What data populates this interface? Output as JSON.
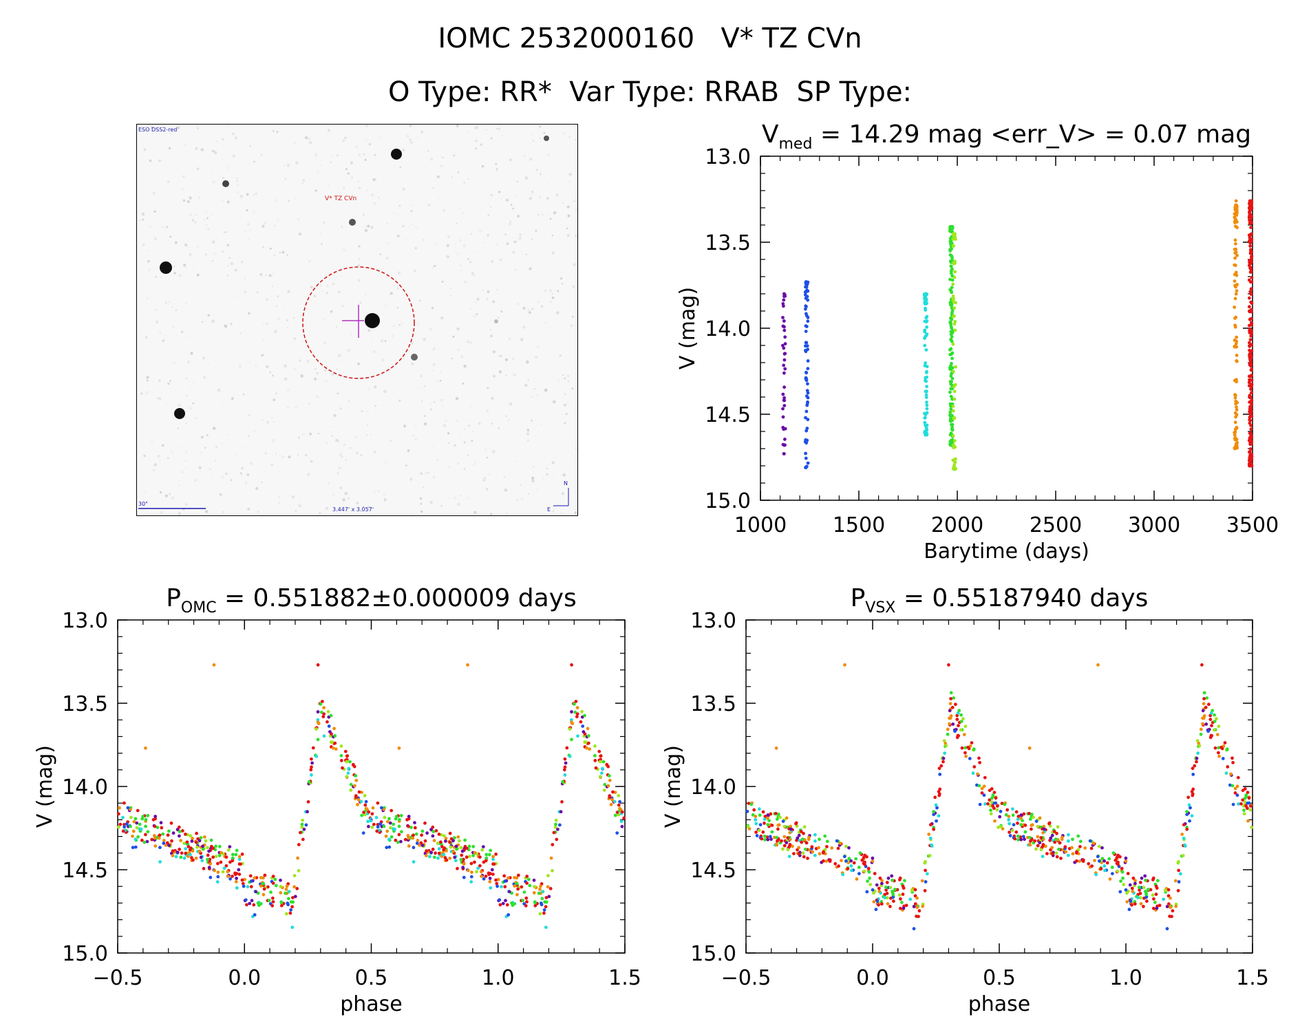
{
  "header": {
    "title": "IOMC 2532000160   V* TZ CVn",
    "subtitle": "O Type: RR*  Var Type: RRAB  SP Type:"
  },
  "finder_chart": {
    "survey": "ESO DSS2-red",
    "target_label": "V* TZ CVn",
    "scale_label": "30\"",
    "fov_label": "3.447' x 3.057'",
    "north_label": "N",
    "east_label": "E",
    "target_color": "#cc1111",
    "marker_color": "#b030c0",
    "annotation_color": "#1a1ab0"
  },
  "colors": {
    "purple": "#6a0aa8",
    "blue": "#1e50e6",
    "cyan": "#22dcdc",
    "green": "#2ee02e",
    "yellowgreen": "#a0e61e",
    "orange": "#f08c0a",
    "red": "#e61414"
  },
  "chart_data": [
    {
      "id": "lightcurve",
      "type": "scatter",
      "title_main": "V",
      "title_sub": "med",
      "title_rest": " = 14.29 mag <err_V> = 0.07 mag",
      "xlabel": "Barytime (days)",
      "ylabel": "V (mag)",
      "xlim": [
        1000,
        3500
      ],
      "ylim": [
        15.0,
        13.0
      ],
      "xticks": [
        1000,
        1500,
        2000,
        2500,
        3000,
        3500
      ],
      "xtick_labels": [
        "1000",
        "1500",
        "2000",
        "2500",
        "3000",
        "3500"
      ],
      "yticks": [
        13.0,
        13.5,
        14.0,
        14.5,
        15.0
      ],
      "ytick_labels": [
        "13.0",
        "13.5",
        "14.0",
        "14.5",
        "15.0"
      ],
      "groups": [
        {
          "name": "purple",
          "x": 1120,
          "ymin": 13.8,
          "ymax": 14.73,
          "n": 40,
          "seed": 11
        },
        {
          "name": "blue",
          "x": 1235,
          "ymin": 13.73,
          "ymax": 14.81,
          "n": 70,
          "seed": 12
        },
        {
          "name": "cyan",
          "x": 1840,
          "ymin": 13.8,
          "ymax": 14.62,
          "n": 80,
          "seed": 13
        },
        {
          "name": "green",
          "x": 1970,
          "ymin": 13.41,
          "ymax": 14.68,
          "n": 160,
          "seed": 14
        },
        {
          "name": "yellowgreen",
          "x": 1985,
          "ymin": 13.45,
          "ymax": 14.82,
          "n": 60,
          "seed": 15
        },
        {
          "name": "orange",
          "x": 3415,
          "ymin": 13.26,
          "ymax": 14.7,
          "n": 100,
          "seed": 16
        },
        {
          "name": "red",
          "x": 3490,
          "ymin": 13.26,
          "ymax": 14.8,
          "n": 240,
          "seed": 17
        }
      ]
    },
    {
      "id": "phase_omc",
      "type": "scatter",
      "title_main": "P",
      "title_sub": "OMC",
      "title_rest": " = 0.551882±0.000009 days",
      "xlabel": "phase",
      "ylabel": "V (mag)",
      "xlim": [
        -0.5,
        1.5
      ],
      "ylim": [
        15.0,
        13.0
      ],
      "xticks": [
        -0.5,
        0.0,
        0.5,
        1.0,
        1.5
      ],
      "xtick_labels": [
        "−0.5",
        "0.0",
        "0.5",
        "1.0",
        "1.5"
      ],
      "yticks": [
        13.0,
        13.5,
        14.0,
        14.5,
        15.0
      ],
      "ytick_labels": [
        "13.0",
        "13.5",
        "14.0",
        "14.5",
        "15.0"
      ],
      "model": {
        "rise_start": 0.19,
        "peak_phase": 0.3,
        "peak_mag": 13.52,
        "post_peak_mag": 13.78,
        "mid_mag": 14.28,
        "min_mag": 14.62,
        "base_mag": 14.1,
        "knee_phase": 0.47,
        "low_phase": 0.85
      },
      "outliers": [
        {
          "phase": -0.12,
          "mag": 13.27,
          "color": "orange"
        },
        {
          "phase": 0.29,
          "mag": 13.27,
          "color": "red"
        },
        {
          "phase": 0.88,
          "mag": 13.27,
          "color": "orange"
        },
        {
          "phase": 1.29,
          "mag": 13.27,
          "color": "red"
        },
        {
          "phase": -0.39,
          "mag": 13.77,
          "color": "orange"
        },
        {
          "phase": 0.61,
          "mag": 13.77,
          "color": "orange"
        }
      ]
    },
    {
      "id": "phase_vsx",
      "type": "scatter",
      "title_main": "P",
      "title_sub": "VSX",
      "title_rest": " = 0.55187940 days",
      "xlabel": "phase",
      "ylabel": "V (mag)",
      "xlim": [
        -0.5,
        1.5
      ],
      "ylim": [
        15.0,
        13.0
      ],
      "xticks": [
        -0.5,
        0.0,
        0.5,
        1.0,
        1.5
      ],
      "xtick_labels": [
        "−0.5",
        "0.0",
        "0.5",
        "1.0",
        "1.5"
      ],
      "yticks": [
        13.0,
        13.5,
        14.0,
        14.5,
        15.0
      ],
      "ytick_labels": [
        "13.0",
        "13.5",
        "14.0",
        "14.5",
        "15.0"
      ],
      "model": {
        "rise_start": 0.19,
        "peak_phase": 0.31,
        "peak_mag": 13.52,
        "post_peak_mag": 13.78,
        "mid_mag": 14.28,
        "min_mag": 14.62,
        "base_mag": 14.1,
        "knee_phase": 0.47,
        "low_phase": 0.85
      },
      "outliers": [
        {
          "phase": -0.11,
          "mag": 13.27,
          "color": "orange"
        },
        {
          "phase": 0.3,
          "mag": 13.27,
          "color": "red"
        },
        {
          "phase": 0.89,
          "mag": 13.27,
          "color": "orange"
        },
        {
          "phase": 1.3,
          "mag": 13.27,
          "color": "red"
        },
        {
          "phase": -0.38,
          "mag": 13.77,
          "color": "orange"
        },
        {
          "phase": 0.62,
          "mag": 13.77,
          "color": "orange"
        }
      ]
    }
  ]
}
